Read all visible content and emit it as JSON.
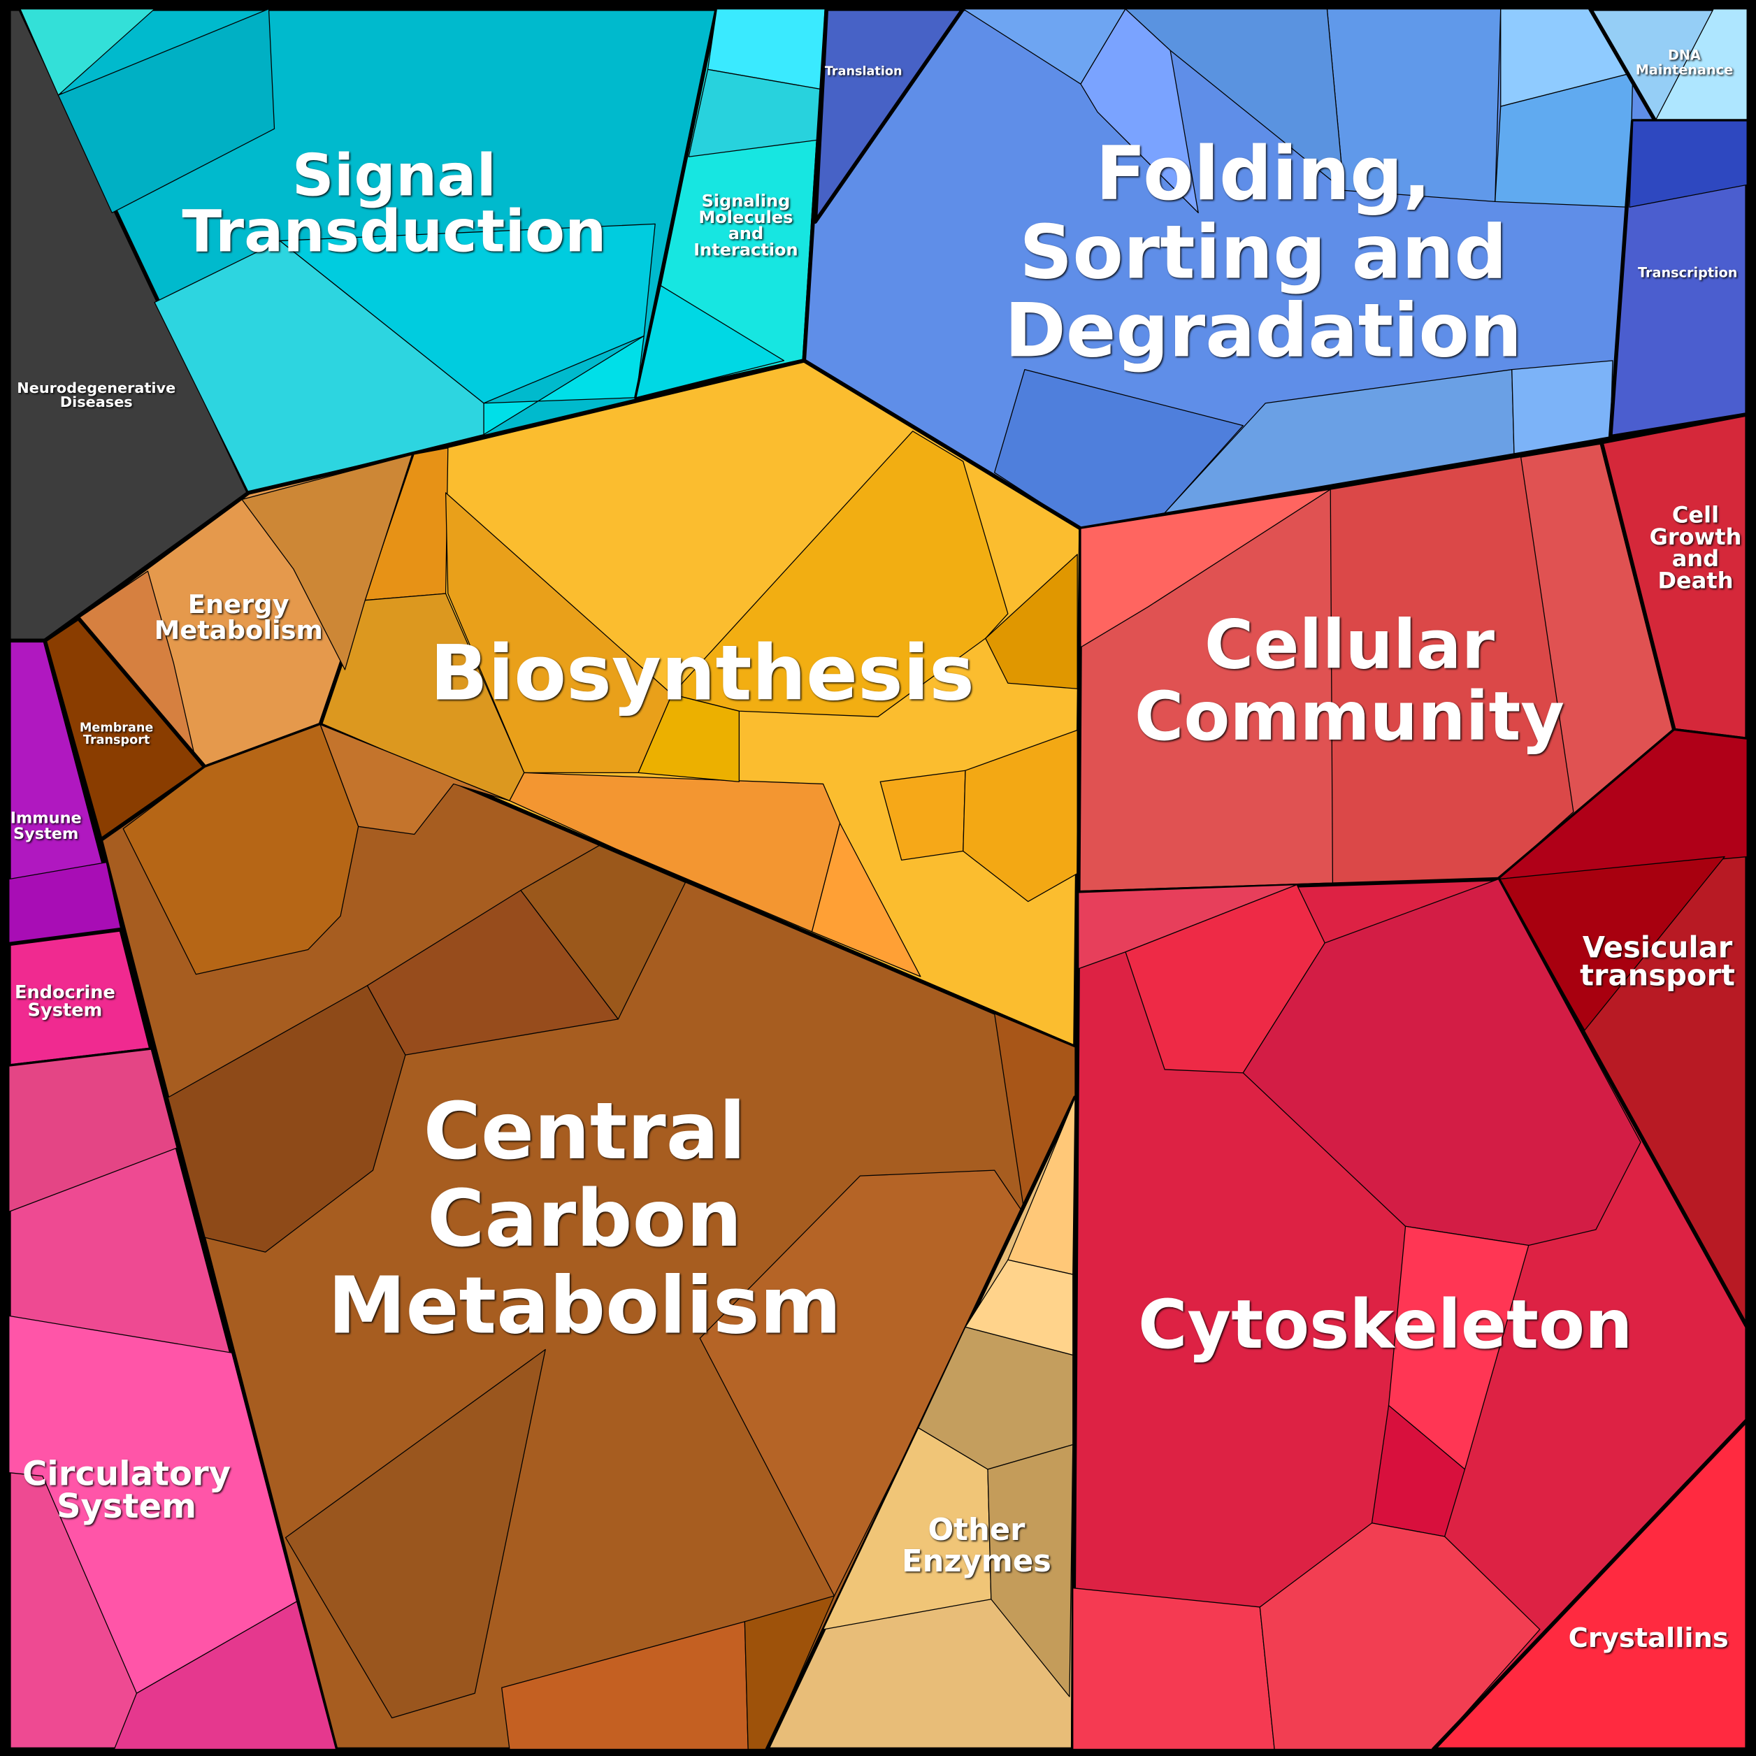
{
  "regions": [
    {
      "lines": [
        "Signal",
        "Transduction"
      ]
    },
    {
      "lines": [
        "Signaling",
        "Molecules",
        "and",
        "Interaction"
      ]
    },
    {
      "lines": [
        "Folding,",
        "Sorting and",
        "Degradation"
      ]
    },
    {
      "lines": [
        "Translation"
      ]
    },
    {
      "lines": [
        "DNA",
        "Maintenance"
      ]
    },
    {
      "lines": [
        "Transcription"
      ]
    },
    {
      "lines": [
        "Neurodegenerative",
        "Diseases"
      ]
    },
    {
      "lines": [
        "Energy",
        "Metabolism"
      ]
    },
    {
      "lines": [
        "Membrane",
        "Transport"
      ]
    },
    {
      "lines": [
        "Biosynthesis"
      ]
    },
    {
      "lines": [
        "Central",
        "Carbon",
        "Metabolism"
      ]
    },
    {
      "lines": [
        "Immune",
        "System"
      ]
    },
    {
      "lines": [
        "Endocrine",
        "System"
      ]
    },
    {
      "lines": [
        "Circulatory",
        "System"
      ]
    },
    {
      "lines": [
        "Other",
        "Enzymes"
      ]
    },
    {
      "lines": [
        "Cellular",
        "Community"
      ]
    },
    {
      "lines": [
        "Cell",
        "Growth",
        "and",
        "Death"
      ]
    },
    {
      "lines": [
        "Vesicular",
        "transport"
      ]
    },
    {
      "lines": [
        "Cytoskeleton"
      ]
    },
    {
      "lines": [
        "Crystallins"
      ]
    }
  ]
}
